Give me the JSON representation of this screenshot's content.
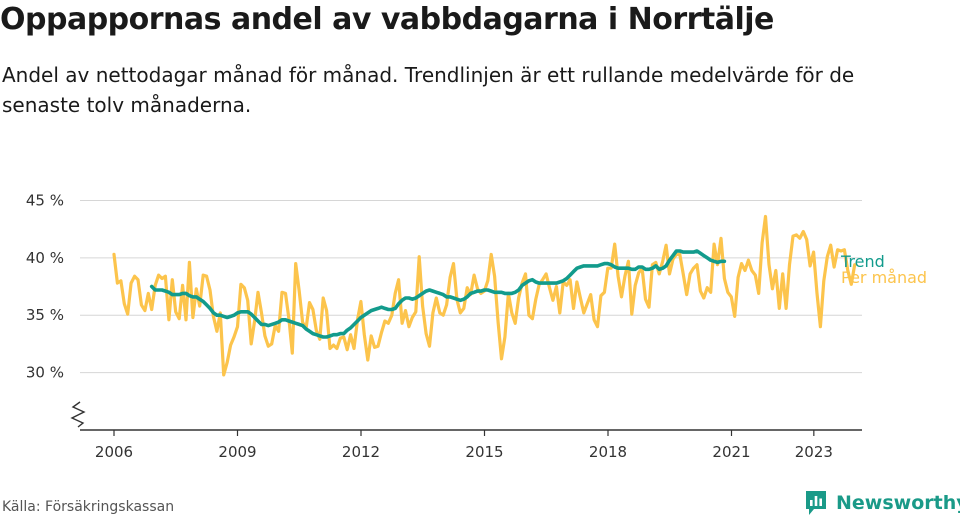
{
  "title": "Oppappornas andel av vabbdagarna i Norrtälje",
  "subtitle": "Andel av nettodagar månad för månad. Trendlinjen är ett rullande medelvärde för de senaste tolv månaderna.",
  "source": "Källa: Försäkringskassan",
  "brand": "Newsworthy",
  "colors": {
    "trend": "#129b8c",
    "monthly": "#fcc44c",
    "grid": "#d6d6d6",
    "brand": "#1a9a88"
  },
  "chart_data": {
    "type": "line",
    "x_ticks": [
      2006,
      2009,
      2012,
      2015,
      2018,
      2021,
      2023
    ],
    "y_ticks": [
      "30 %",
      "35 %",
      "40 %",
      "45 %"
    ],
    "y_tick_values": [
      30,
      35,
      40,
      45
    ],
    "ylim": [
      25,
      46
    ],
    "y_axis_break": true,
    "series": [
      {
        "name": "Per månad",
        "x_start": 2006.0,
        "step": 0.0833,
        "values": [
          40.3,
          37.8,
          38.0,
          36.0,
          35.1,
          37.8,
          38.4,
          38.1,
          35.9,
          35.4,
          36.9,
          35.5,
          37.6,
          38.5,
          38.2,
          38.4,
          34.6,
          38.1,
          35.3,
          34.7,
          37.6,
          34.6,
          39.6,
          34.8,
          37.3,
          35.8,
          38.5,
          38.4,
          37.2,
          34.9,
          33.6,
          35.2,
          29.8,
          30.9,
          32.4,
          33.1,
          34.0,
          37.7,
          37.4,
          36.3,
          32.5,
          34.5,
          37.0,
          35.2,
          33.2,
          32.3,
          32.5,
          34.1,
          33.6,
          37.0,
          36.9,
          34.7,
          31.7,
          39.5,
          37.1,
          34.4,
          33.8,
          36.1,
          35.5,
          33.7,
          32.9,
          36.5,
          35.4,
          32.1,
          32.4,
          32.1,
          33.0,
          33.1,
          32.0,
          33.3,
          32.1,
          34.6,
          36.2,
          33.3,
          31.1,
          33.2,
          32.2,
          32.3,
          33.5,
          34.5,
          34.3,
          35.0,
          36.9,
          38.1,
          34.3,
          35.4,
          34.0,
          34.8,
          35.3,
          40.1,
          35.8,
          33.4,
          32.3,
          35.2,
          36.5,
          35.2,
          35.0,
          35.9,
          38.3,
          39.5,
          36.4,
          35.2,
          35.6,
          37.4,
          36.8,
          38.5,
          37.3,
          36.9,
          37.1,
          38.0,
          40.3,
          38.4,
          34.4,
          31.2,
          33.1,
          36.9,
          35.2,
          34.3,
          36.5,
          37.8,
          38.6,
          35.0,
          34.7,
          36.4,
          37.7,
          38.1,
          38.6,
          37.4,
          36.3,
          37.5,
          35.2,
          37.9,
          37.6,
          38.1,
          35.6,
          37.9,
          36.5,
          35.2,
          36.0,
          36.8,
          34.6,
          34.0,
          36.7,
          37.0,
          39.1,
          39.1,
          41.2,
          38.4,
          36.6,
          38.4,
          39.7,
          35.1,
          37.6,
          38.7,
          39.1,
          36.4,
          35.7,
          39.4,
          39.6,
          38.6,
          39.7,
          41.1,
          38.6,
          39.9,
          40.3,
          40.3,
          38.6,
          36.8,
          38.6,
          39.1,
          39.4,
          37.1,
          36.5,
          37.4,
          37.0,
          41.2,
          39.4,
          41.7,
          38.2,
          37.0,
          36.6,
          34.9,
          38.3,
          39.5,
          38.9,
          39.8,
          38.9,
          38.5,
          36.9,
          41.3,
          43.6,
          39.4,
          37.3,
          38.9,
          35.6,
          38.6,
          35.6,
          39.4,
          41.9,
          42.0,
          41.7,
          42.3,
          41.6,
          39.3,
          40.5,
          36.9,
          34.0,
          38.0,
          40.1,
          41.1,
          39.2,
          40.7,
          40.6,
          40.7,
          38.9,
          37.7,
          39.4
        ]
      },
      {
        "name": "Trend",
        "x_start": 2006.9167,
        "step": 0.0833,
        "values": [
          37.5,
          37.2,
          37.2,
          37.2,
          37.1,
          37.0,
          36.8,
          36.8,
          36.8,
          36.9,
          36.9,
          36.7,
          36.6,
          36.6,
          36.4,
          36.2,
          35.9,
          35.6,
          35.2,
          35.0,
          35.0,
          34.9,
          34.8,
          34.9,
          35.0,
          35.2,
          35.3,
          35.3,
          35.3,
          35.1,
          34.8,
          34.5,
          34.2,
          34.2,
          34.1,
          34.2,
          34.3,
          34.4,
          34.6,
          34.6,
          34.5,
          34.4,
          34.3,
          34.2,
          34.1,
          33.8,
          33.6,
          33.4,
          33.3,
          33.2,
          33.1,
          33.1,
          33.2,
          33.3,
          33.3,
          33.4,
          33.4,
          33.7,
          33.9,
          34.2,
          34.5,
          34.8,
          35.0,
          35.2,
          35.4,
          35.5,
          35.6,
          35.7,
          35.6,
          35.5,
          35.5,
          35.6,
          36.0,
          36.3,
          36.5,
          36.5,
          36.4,
          36.5,
          36.7,
          36.9,
          37.1,
          37.2,
          37.1,
          37.0,
          36.9,
          36.8,
          36.6,
          36.6,
          36.5,
          36.4,
          36.3,
          36.4,
          36.6,
          36.9,
          37.0,
          37.1,
          37.1,
          37.2,
          37.2,
          37.1,
          37.0,
          37.0,
          37.0,
          36.9,
          36.9,
          36.9,
          37.0,
          37.2,
          37.6,
          37.8,
          38.0,
          38.1,
          37.9,
          37.8,
          37.8,
          37.8,
          37.8,
          37.8,
          37.8,
          37.9,
          38.0,
          38.2,
          38.5,
          38.8,
          39.1,
          39.2,
          39.3,
          39.3,
          39.3,
          39.3,
          39.3,
          39.4,
          39.5,
          39.5,
          39.4,
          39.2,
          39.1,
          39.1,
          39.1,
          39.1,
          39.0,
          39.0,
          39.2,
          39.2,
          39.0,
          39.0,
          39.1,
          39.3,
          39.0,
          39.1,
          39.3,
          39.8,
          40.2,
          40.6,
          40.6,
          40.5,
          40.5,
          40.5,
          40.5,
          40.6,
          40.4,
          40.2,
          40.0,
          39.8,
          39.7,
          39.6,
          39.7,
          39.7
        ]
      }
    ],
    "legend_placement": "right-end-labels",
    "grid": true
  }
}
